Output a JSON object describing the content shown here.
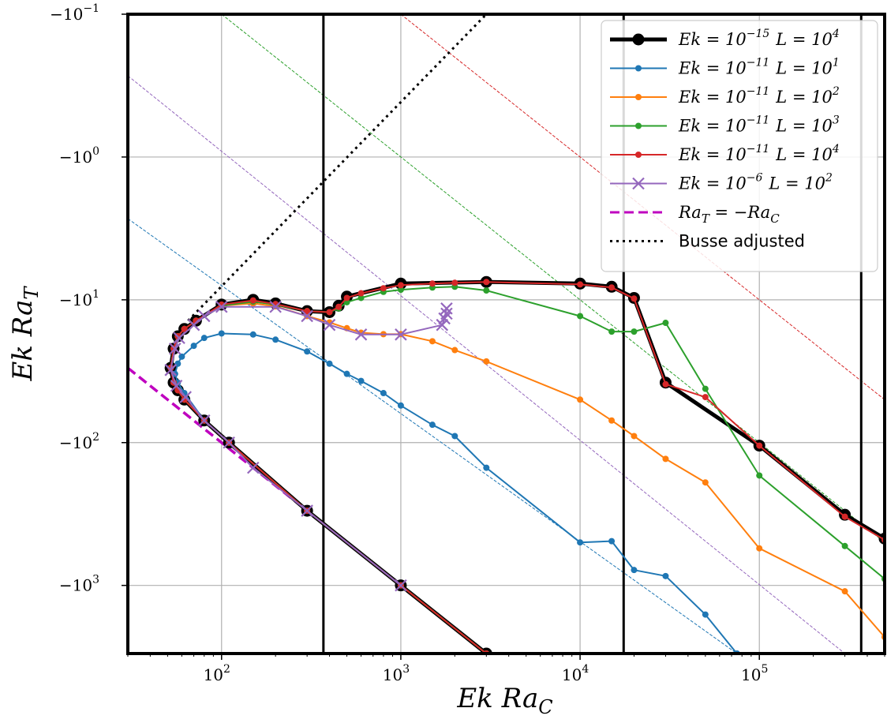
{
  "chart_data": {
    "type": "line",
    "xlabel": "Ek Ra_C",
    "ylabel": "Ek Ra_T",
    "xscale": "log",
    "yscale": "symlog (negative)",
    "xlim": [
      30,
      500000
    ],
    "ylim": [
      -3000,
      -0.1
    ],
    "xticks": [
      {
        "value": 100,
        "base": "10",
        "exp": "2"
      },
      {
        "value": 1000,
        "base": "10",
        "exp": "3"
      },
      {
        "value": 10000,
        "base": "10",
        "exp": "4"
      },
      {
        "value": 100000,
        "base": "10",
        "exp": "5"
      }
    ],
    "yticks": [
      {
        "value": -0.1,
        "base": "−10",
        "exp": "−1"
      },
      {
        "value": -1,
        "base": "−10",
        "exp": "0"
      },
      {
        "value": -10,
        "base": "−10",
        "exp": "1"
      },
      {
        "value": -100,
        "base": "−10",
        "exp": "2"
      },
      {
        "value": -1000,
        "base": "−10",
        "exp": "3"
      }
    ],
    "grid": true,
    "legend_position": "top-right",
    "vertical_lines_x": [
      370,
      17500,
      370000
    ],
    "series": [
      {
        "name": "Ek = 10^{-15} L = 10^4",
        "legend_label": "Ek = 10",
        "legend_exp": "−15",
        "legend_rest": "L = 10",
        "legend_rest_exp": "4",
        "color": "#000000",
        "marker": "circle-large",
        "line_width": 5,
        "upper_branch": [
          [
            52,
            -30
          ],
          [
            54,
            -22
          ],
          [
            57,
            -18
          ],
          [
            62,
            -16
          ],
          [
            72,
            -14
          ],
          [
            100,
            -10.8
          ],
          [
            150,
            -10
          ],
          [
            200,
            -10.6
          ],
          [
            300,
            -12
          ],
          [
            400,
            -12.2
          ],
          [
            450,
            -11
          ],
          [
            500,
            -9.5
          ],
          [
            1000,
            -7.7
          ],
          [
            3000,
            -7.5
          ],
          [
            10000,
            -7.7
          ],
          [
            15000,
            -8.1
          ],
          [
            20000,
            -9.7
          ],
          [
            30000,
            -38
          ],
          [
            100000,
            -105
          ],
          [
            300000,
            -320
          ],
          [
            500000,
            -470
          ]
        ],
        "lower_branch": [
          [
            52,
            -30
          ],
          [
            54,
            -38
          ],
          [
            57,
            -43
          ],
          [
            62,
            -50
          ],
          [
            80,
            -70
          ],
          [
            110,
            -100
          ],
          [
            300,
            -300
          ],
          [
            1000,
            -1000
          ],
          [
            3000,
            -3000
          ]
        ]
      },
      {
        "name": "Ek = 10^{-11} L = 10^1",
        "legend_label": "Ek = 10",
        "legend_exp": "−11",
        "legend_rest": "L = 10",
        "legend_rest_exp": "1",
        "color": "#1f77b4",
        "marker": "circle",
        "line_width": 2,
        "upper_branch": [
          [
            55,
            -33
          ],
          [
            57,
            -28
          ],
          [
            60,
            -25
          ],
          [
            70,
            -21
          ],
          [
            80,
            -18.5
          ],
          [
            100,
            -17.2
          ],
          [
            150,
            -17.5
          ],
          [
            200,
            -19
          ],
          [
            300,
            -23
          ],
          [
            400,
            -28
          ],
          [
            500,
            -33
          ],
          [
            600,
            -37
          ],
          [
            800,
            -45
          ],
          [
            1000,
            -55
          ],
          [
            1500,
            -75
          ],
          [
            2000,
            -90
          ],
          [
            3000,
            -150
          ],
          [
            10000,
            -500
          ],
          [
            15000,
            -490
          ],
          [
            20000,
            -780
          ],
          [
            30000,
            -860
          ],
          [
            50000,
            -1600
          ],
          [
            75000,
            -3000
          ]
        ],
        "lower_branch": [
          [
            55,
            -33
          ],
          [
            57,
            -38
          ],
          [
            62,
            -45
          ],
          [
            80,
            -70
          ],
          [
            110,
            -100
          ],
          [
            300,
            -300
          ],
          [
            1000,
            -1000
          ],
          [
            3000,
            -3000
          ]
        ]
      },
      {
        "name": "Ek = 10^{-11} L = 10^2",
        "legend_label": "Ek = 10",
        "legend_exp": "−11",
        "legend_rest": "L = 10",
        "legend_rest_exp": "2",
        "color": "#ff7f0e",
        "marker": "circle",
        "line_width": 2,
        "upper_branch": [
          [
            52,
            -30
          ],
          [
            54,
            -22
          ],
          [
            57,
            -18
          ],
          [
            62,
            -16
          ],
          [
            72,
            -14
          ],
          [
            100,
            -11
          ],
          [
            150,
            -10.6
          ],
          [
            200,
            -11.1
          ],
          [
            300,
            -13
          ],
          [
            400,
            -14.4
          ],
          [
            500,
            -15.8
          ],
          [
            600,
            -17
          ],
          [
            800,
            -17.4
          ],
          [
            1000,
            -17.4
          ],
          [
            1500,
            -19.5
          ],
          [
            2000,
            -22.5
          ],
          [
            3000,
            -27
          ],
          [
            10000,
            -50
          ],
          [
            15000,
            -70
          ],
          [
            20000,
            -90
          ],
          [
            30000,
            -130
          ],
          [
            50000,
            -190
          ],
          [
            100000,
            -550
          ],
          [
            300000,
            -1100
          ],
          [
            500000,
            -2300
          ]
        ],
        "lower_branch": [
          [
            52,
            -30
          ],
          [
            54,
            -38
          ],
          [
            57,
            -43
          ],
          [
            62,
            -50
          ],
          [
            80,
            -70
          ],
          [
            110,
            -100
          ],
          [
            300,
            -300
          ],
          [
            1000,
            -1000
          ],
          [
            3000,
            -3000
          ]
        ]
      },
      {
        "name": "Ek = 10^{-11} L = 10^3",
        "legend_label": "Ek = 10",
        "legend_exp": "−11",
        "legend_rest": "L = 10",
        "legend_rest_exp": "3",
        "color": "#2ca02c",
        "marker": "circle",
        "line_width": 2,
        "upper_branch": [
          [
            52,
            -30
          ],
          [
            54,
            -22
          ],
          [
            57,
            -18
          ],
          [
            62,
            -16
          ],
          [
            72,
            -14
          ],
          [
            100,
            -11
          ],
          [
            150,
            -10.3
          ],
          [
            200,
            -10.8
          ],
          [
            300,
            -12
          ],
          [
            400,
            -12.2
          ],
          [
            450,
            -11.5
          ],
          [
            500,
            -10.4
          ],
          [
            600,
            -9.7
          ],
          [
            800,
            -8.8
          ],
          [
            1000,
            -8.5
          ],
          [
            1500,
            -8.2
          ],
          [
            2000,
            -8.1
          ],
          [
            3000,
            -8.6
          ],
          [
            10000,
            -13
          ],
          [
            15000,
            -16.7
          ],
          [
            20000,
            -16.7
          ],
          [
            30000,
            -14.5
          ],
          [
            50000,
            -42
          ],
          [
            100000,
            -170
          ],
          [
            300000,
            -530
          ],
          [
            500000,
            -900
          ]
        ],
        "lower_branch": [
          [
            52,
            -30
          ],
          [
            54,
            -38
          ],
          [
            57,
            -43
          ],
          [
            62,
            -50
          ],
          [
            80,
            -70
          ],
          [
            110,
            -100
          ],
          [
            300,
            -300
          ],
          [
            1000,
            -1000
          ],
          [
            3000,
            -3000
          ]
        ]
      },
      {
        "name": "Ek = 10^{-11} L = 10^4",
        "legend_label": "Ek = 10",
        "legend_exp": "−11",
        "legend_rest": "L = 10",
        "legend_rest_exp": "4",
        "color": "#d62728",
        "marker": "circle",
        "line_width": 2,
        "upper_branch": [
          [
            52,
            -30
          ],
          [
            54,
            -22
          ],
          [
            57,
            -18
          ],
          [
            62,
            -16
          ],
          [
            72,
            -14
          ],
          [
            100,
            -10.8
          ],
          [
            150,
            -10.1
          ],
          [
            200,
            -10.7
          ],
          [
            300,
            -12
          ],
          [
            400,
            -12.2
          ],
          [
            450,
            -11.2
          ],
          [
            500,
            -9.7
          ],
          [
            600,
            -9
          ],
          [
            800,
            -8.3
          ],
          [
            1000,
            -7.9
          ],
          [
            1500,
            -7.7
          ],
          [
            2000,
            -7.6
          ],
          [
            3000,
            -7.5
          ],
          [
            10000,
            -7.8
          ],
          [
            15000,
            -8.2
          ],
          [
            20000,
            -9.8
          ],
          [
            30000,
            -39
          ],
          [
            50000,
            -48
          ],
          [
            100000,
            -105
          ],
          [
            300000,
            -330
          ],
          [
            500000,
            -480
          ]
        ],
        "lower_branch": [
          [
            52,
            -30
          ],
          [
            54,
            -38
          ],
          [
            57,
            -43
          ],
          [
            62,
            -50
          ],
          [
            80,
            -70
          ],
          [
            110,
            -100
          ],
          [
            300,
            -300
          ],
          [
            1000,
            -1000
          ],
          [
            3000,
            -3000
          ]
        ]
      },
      {
        "name": "Ek = 10^{-6} L = 10^2",
        "legend_label": "Ek = 10",
        "legend_exp": "−6",
        "legend_rest": "L = 10",
        "legend_rest_exp": "2",
        "color": "#9467bd",
        "marker": "x",
        "line_width": 2,
        "upper_branch": [
          [
            52,
            -31
          ],
          [
            55,
            -22
          ],
          [
            58,
            -18.5
          ],
          [
            70,
            -15
          ],
          [
            80,
            -13
          ],
          [
            100,
            -11.2
          ],
          [
            200,
            -11.2
          ],
          [
            300,
            -13
          ],
          [
            400,
            -15
          ],
          [
            600,
            -17.5
          ],
          [
            1000,
            -17.5
          ],
          [
            1700,
            -15
          ],
          [
            1800,
            -12.5
          ],
          [
            1750,
            -13.5
          ],
          [
            1800,
            -11.5
          ]
        ],
        "lower_branch": [
          [
            52,
            -31
          ],
          [
            56,
            -40
          ],
          [
            63,
            -48
          ],
          [
            80,
            -70
          ],
          [
            110,
            -100
          ],
          [
            150,
            -150
          ],
          [
            300,
            -300
          ],
          [
            1000,
            -1000
          ]
        ]
      }
    ],
    "reference_lines": [
      {
        "name": "Ra_T = −Ra_C",
        "legend_label": "Ra",
        "legend_sub1": "T",
        "legend_mid": " = −Ra",
        "legend_sub2": "C",
        "color": "#bf00bf",
        "style": "dashed",
        "points": [
          [
            30,
            -30
          ],
          [
            3000,
            -3000
          ]
        ]
      },
      {
        "name": "Busse adjusted",
        "legend_label": "Busse adjusted",
        "color": "#000000",
        "style": "dotted",
        "points": [
          [
            65,
            -14
          ],
          [
            3000,
            -0.1
          ]
        ]
      }
    ],
    "thin_dashed_lines": [
      {
        "color": "#1f77b4",
        "points": [
          [
            30,
            -2.7
          ],
          [
            75000,
            -3000
          ]
        ]
      },
      {
        "color": "#9467bd",
        "points": [
          [
            30,
            -0.27
          ],
          [
            300000,
            -3000
          ]
        ]
      },
      {
        "color": "#2ca02c",
        "points": [
          [
            100,
            -0.1
          ],
          [
            500000,
            -500
          ]
        ]
      },
      {
        "color": "#d62728",
        "points": [
          [
            1000,
            -0.1
          ],
          [
            500000,
            -50
          ]
        ]
      }
    ]
  }
}
